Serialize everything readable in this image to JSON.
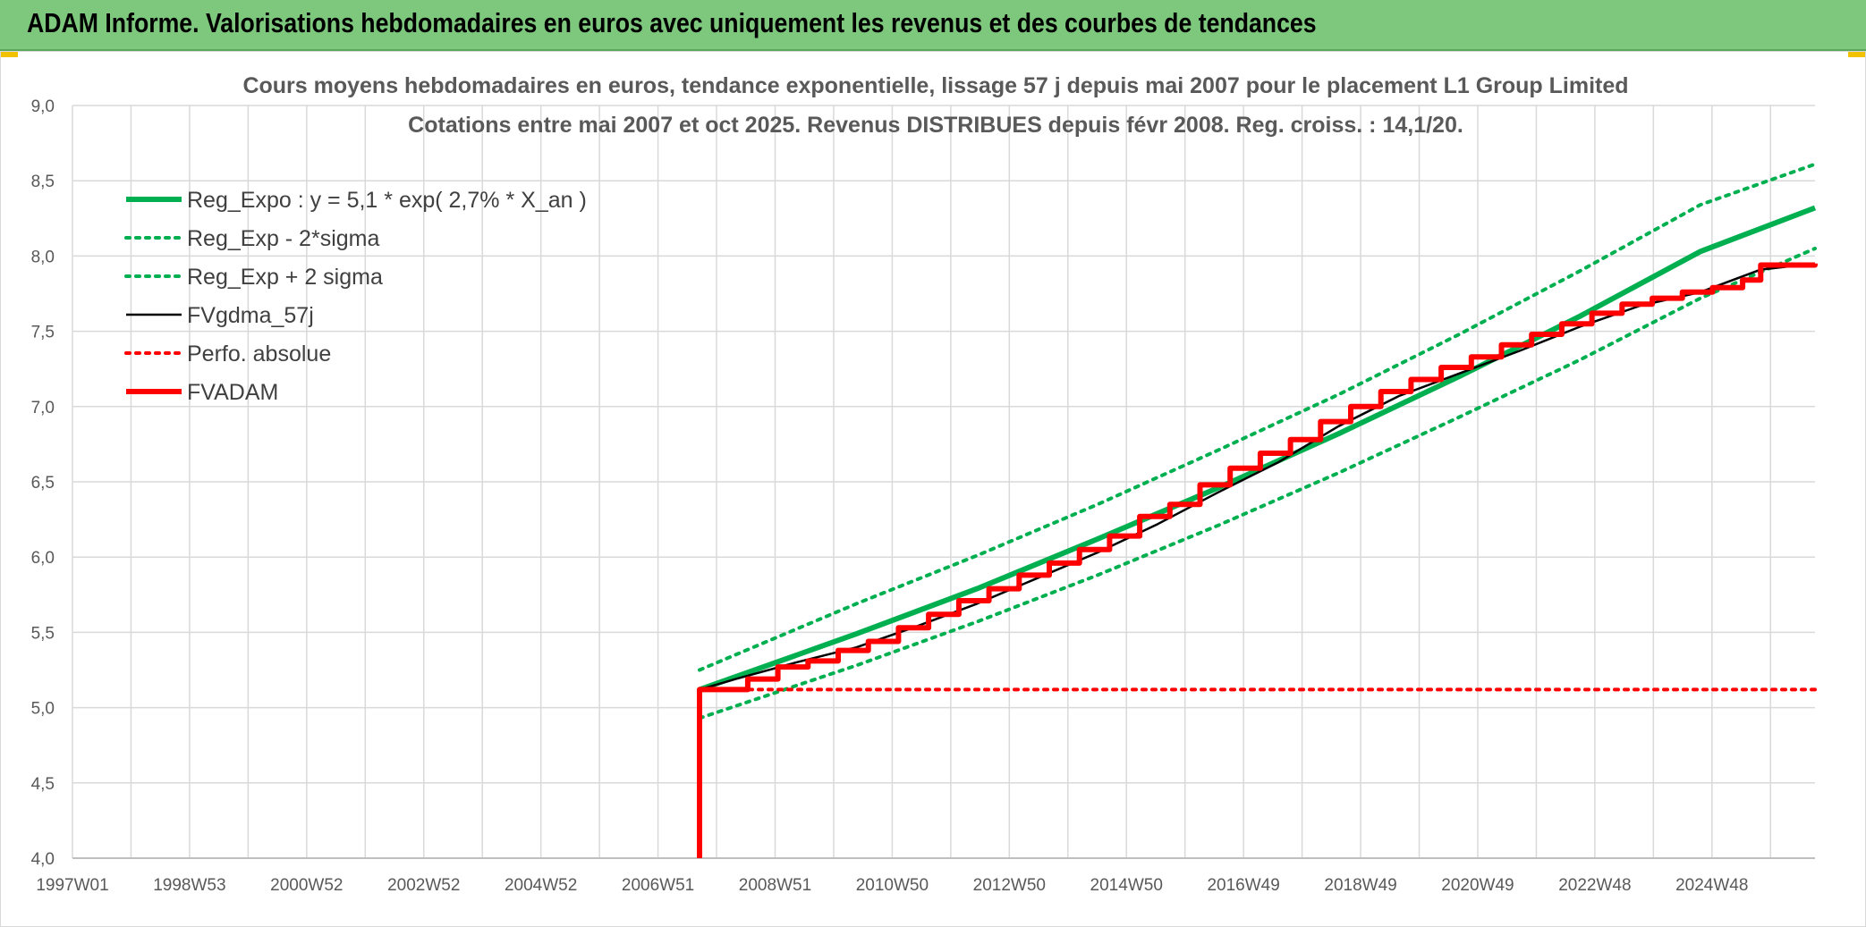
{
  "header": {
    "title": "ADAM Informe. Valorisations hebdomadaires en euros avec uniquement les revenus et des courbes de tendances"
  },
  "colors": {
    "header_bg": "#7dc87d",
    "reg_expo": "#00b050",
    "fvgdma": "#000000",
    "perfo": "#ff0000",
    "fvadam": "#ff0000",
    "grid": "#d9d9d9"
  },
  "chart_data": {
    "type": "line",
    "title": "Cours moyens hebdomadaires en euros, tendance exponentielle, lissage 57 j depuis mai 2007 pour le placement L1 Group Limited",
    "subtitle": "Cotations entre mai 2007 et oct 2025. Revenus DISTRIBUES depuis févr 2008. Reg. croiss. : 14,1/20.",
    "xlabel": "",
    "ylabel": "",
    "x_tick_labels": [
      "1997W01",
      "1998W53",
      "2000W52",
      "2002W52",
      "2004W52",
      "2006W51",
      "2008W51",
      "2010W50",
      "2012W50",
      "2014W50",
      "2016W49",
      "2018W49",
      "2020W49",
      "2022W48",
      "2024W48"
    ],
    "y_tick_labels": [
      "4,0",
      "4,5",
      "5,0",
      "5,5",
      "6,0",
      "6,5",
      "7,0",
      "7,5",
      "8,0",
      "8,5",
      "9,0"
    ],
    "ylim": [
      4.0,
      9.0
    ],
    "xlim": [
      1997.0,
      2025.9
    ],
    "grid": true,
    "legend_position": "top-left",
    "series": [
      {
        "name": "Reg_Expo : y = 5,1 * exp( 2,7% *  X_an )",
        "style": "solid-thick",
        "color": "#00b050",
        "x": [
          2007.4,
          2010.0,
          2012.0,
          2014.0,
          2016.0,
          2018.0,
          2020.0,
          2022.0,
          2024.0,
          2025.9
        ],
        "y": [
          5.12,
          5.49,
          5.79,
          6.12,
          6.46,
          6.82,
          7.2,
          7.6,
          8.03,
          8.32
        ]
      },
      {
        "name": "Reg_Exp - 2*sigma",
        "style": "dotted",
        "color": "#00b050",
        "x": [
          2007.4,
          2010.0,
          2012.0,
          2014.0,
          2016.0,
          2018.0,
          2020.0,
          2022.0,
          2024.0,
          2025.9
        ],
        "y": [
          4.93,
          5.28,
          5.57,
          5.88,
          6.21,
          6.56,
          6.93,
          7.31,
          7.72,
          8.05
        ]
      },
      {
        "name": "Reg_Exp + 2 sigma",
        "style": "dotted",
        "color": "#00b050",
        "x": [
          2007.4,
          2010.0,
          2012.0,
          2014.0,
          2016.0,
          2018.0,
          2020.0,
          2022.0,
          2024.0,
          2025.9
        ],
        "y": [
          5.25,
          5.69,
          6.01,
          6.35,
          6.71,
          7.08,
          7.48,
          7.9,
          8.34,
          8.61
        ]
      },
      {
        "name": "FVgdma_57j",
        "style": "solid-thin",
        "color": "#000000",
        "x": [
          2007.4,
          2008.0,
          2009.0,
          2010.0,
          2011.0,
          2012.0,
          2013.0,
          2014.0,
          2015.0,
          2016.0,
          2017.0,
          2018.0,
          2019.0,
          2020.0,
          2021.0,
          2022.0,
          2023.0,
          2024.0,
          2025.0,
          2025.9
        ],
        "y": [
          5.12,
          5.19,
          5.3,
          5.4,
          5.54,
          5.69,
          5.86,
          6.03,
          6.22,
          6.43,
          6.63,
          6.87,
          7.07,
          7.22,
          7.37,
          7.53,
          7.67,
          7.76,
          7.91,
          7.95
        ]
      },
      {
        "name": "Perfo. absolue",
        "style": "dotted",
        "color": "#ff0000",
        "x": [
          2007.4,
          2025.9
        ],
        "y": [
          5.12,
          5.12
        ]
      },
      {
        "name": "FVADAM",
        "style": "step-thick",
        "color": "#ff0000",
        "x": [
          2007.4,
          2007.4,
          2008.2,
          2008.7,
          2009.2,
          2009.7,
          2010.2,
          2010.7,
          2011.2,
          2011.7,
          2012.2,
          2012.7,
          2013.2,
          2013.7,
          2014.2,
          2014.7,
          2015.2,
          2015.7,
          2016.2,
          2016.7,
          2017.2,
          2017.7,
          2018.2,
          2018.7,
          2019.2,
          2019.7,
          2020.2,
          2020.7,
          2021.2,
          2021.7,
          2022.2,
          2022.7,
          2023.2,
          2023.7,
          2024.2,
          2024.7,
          2025.0,
          2025.9
        ],
        "y": [
          4.0,
          5.12,
          5.19,
          5.27,
          5.31,
          5.38,
          5.44,
          5.53,
          5.62,
          5.71,
          5.79,
          5.88,
          5.96,
          6.05,
          6.14,
          6.27,
          6.35,
          6.48,
          6.59,
          6.69,
          6.78,
          6.9,
          7.0,
          7.1,
          7.18,
          7.26,
          7.33,
          7.41,
          7.48,
          7.55,
          7.62,
          7.68,
          7.72,
          7.76,
          7.79,
          7.84,
          7.94,
          7.95
        ]
      }
    ]
  }
}
